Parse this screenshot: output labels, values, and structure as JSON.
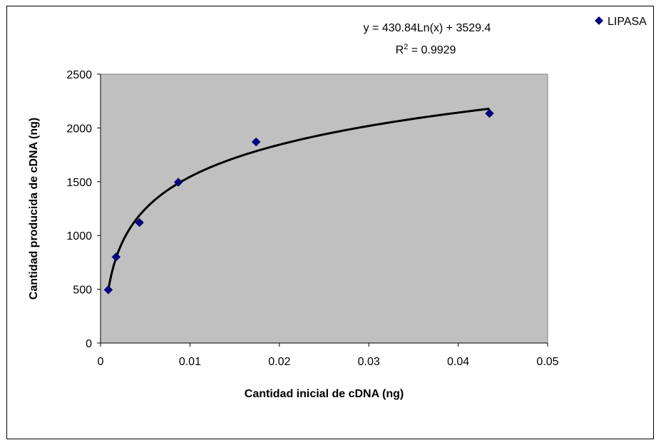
{
  "chart_data": {
    "type": "scatter",
    "title": "",
    "xlabel": "Cantidad inicial de cDNA (ng)",
    "ylabel": "Cantidad producida de cDNA (ng)",
    "xlim": [
      0,
      0.05
    ],
    "ylim": [
      0,
      2500
    ],
    "x_ticks": [
      "0",
      "0.01",
      "0.02",
      "0.03",
      "0.04",
      "0.05"
    ],
    "y_ticks": [
      "0",
      "500",
      "1000",
      "1500",
      "2000",
      "2500"
    ],
    "grid": false,
    "plot_background": "#c0c0c0",
    "legend_position": "top-right",
    "series": [
      {
        "name": "LIPASA",
        "color": "#000080",
        "marker": "diamond",
        "x": [
          0.00087,
          0.00174,
          0.00435,
          0.0087,
          0.0174,
          0.0435
        ],
        "y": [
          495,
          800,
          1120,
          1495,
          1870,
          2135
        ]
      }
    ],
    "trendline": {
      "type": "logarithmic",
      "a": 430.84,
      "b": 3529.4,
      "x_range": [
        0.00087,
        0.0435
      ],
      "color": "#000000",
      "equation_label": "y = 430.84Ln(x) + 3529.4",
      "r2_prefix": "R",
      "r2_suffix": " = 0.9929"
    }
  }
}
